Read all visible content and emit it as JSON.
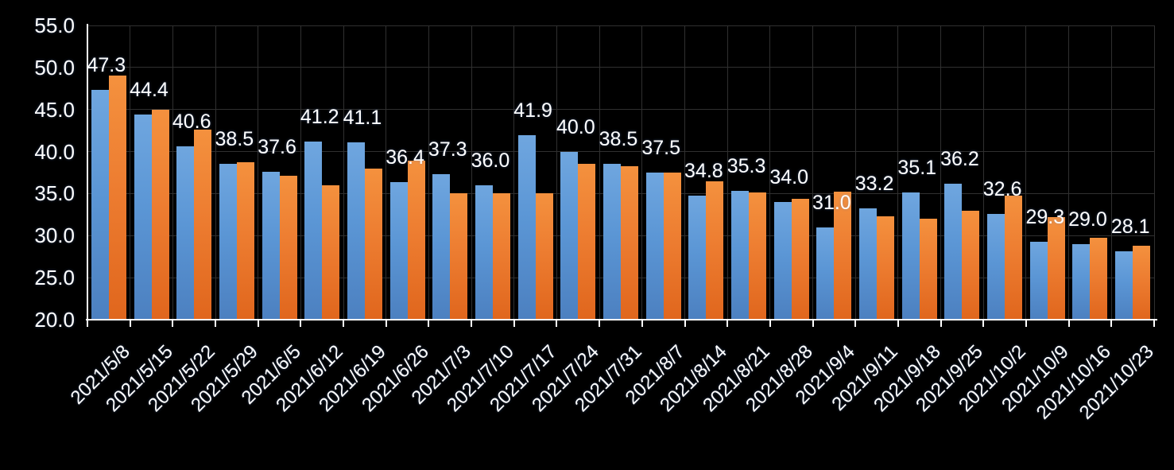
{
  "chart_data": {
    "type": "bar",
    "title": "",
    "xlabel": "",
    "ylabel": "",
    "ylim": [
      20,
      55
    ],
    "ytick_step": 5,
    "grid": true,
    "legend": "none",
    "categories": [
      "2021/5/8",
      "2021/5/15",
      "2021/5/22",
      "2021/5/29",
      "2021/6/5",
      "2021/6/12",
      "2021/6/19",
      "2021/6/26",
      "2021/7/3",
      "2021/7/10",
      "2021/7/17",
      "2021/7/24",
      "2021/7/31",
      "2021/8/7",
      "2021/8/14",
      "2021/8/21",
      "2021/8/28",
      "2021/9/4",
      "2021/9/11",
      "2021/9/18",
      "2021/9/25",
      "2021/10/2",
      "2021/10/9",
      "2021/10/16",
      "2021/10/23"
    ],
    "series": [
      {
        "name": "blue-series",
        "color": "#5B96D5",
        "gradient": [
          "#6FA6DF",
          "#4C80C0"
        ],
        "labels_visible": true,
        "values": [
          47.3,
          44.4,
          40.6,
          38.5,
          37.6,
          41.2,
          41.1,
          36.4,
          37.3,
          36.0,
          41.9,
          40.0,
          38.5,
          37.5,
          34.8,
          35.3,
          34.0,
          31.0,
          33.2,
          35.1,
          36.2,
          32.6,
          29.3,
          29.0,
          28.1
        ],
        "data_labels": [
          "47.3",
          "44.4",
          "40.6",
          "38.5",
          "37.6",
          "41.2",
          "41.1",
          "36.4",
          "37.3",
          "36.0",
          "41.9",
          "40.0",
          "38.5",
          "37.5",
          "34.8",
          "35.3",
          "34.0",
          "31.0",
          "33.2",
          "35.1",
          "36.2",
          "32.6",
          "29.3",
          "29.0",
          "28.1"
        ]
      },
      {
        "name": "orange-series",
        "color": "#ED7D31",
        "gradient": [
          "#F4913E",
          "#E0661D"
        ],
        "labels_visible": false,
        "values": [
          49.0,
          45.0,
          42.6,
          38.7,
          37.1,
          36.0,
          38.0,
          38.9,
          35.0,
          35.0,
          35.0,
          38.5,
          38.3,
          37.5,
          36.5,
          35.1,
          34.4,
          35.2,
          32.3,
          32.0,
          33.0,
          34.8,
          32.2,
          29.7,
          28.8
        ]
      }
    ],
    "ytick_labels": [
      "55.0",
      "50.0",
      "45.0",
      "40.0",
      "35.0",
      "30.0",
      "25.0",
      "20.0"
    ]
  },
  "colors": {
    "background": "#000000",
    "gridline": "#303030",
    "axis": "#FFFFFF",
    "text": "#FFFFFF"
  }
}
